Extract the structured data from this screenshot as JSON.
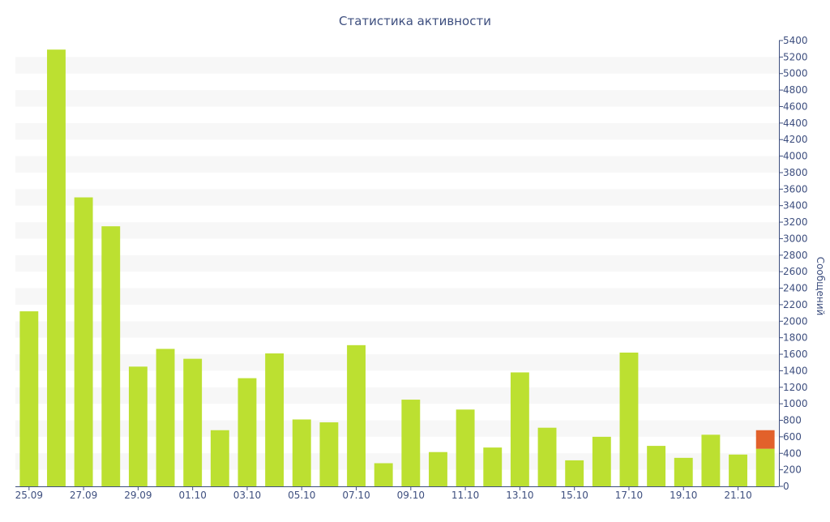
{
  "chart_data": {
    "type": "bar",
    "title": "Статистика активности",
    "xlabel": "",
    "ylabel": "Сообщений",
    "y_axis_side": "right",
    "ylim": [
      0,
      5400
    ],
    "ytick_step": 200,
    "grid": "alternating horizontal bands",
    "legend": "none",
    "categories": [
      "25.09",
      "26.09",
      "27.09",
      "28.09",
      "29.09",
      "30.09",
      "01.10",
      "02.10",
      "03.10",
      "04.10",
      "05.10",
      "06.10",
      "07.10",
      "08.10",
      "09.10",
      "10.10",
      "11.10",
      "12.10",
      "13.10",
      "14.10",
      "15.10",
      "16.10",
      "17.10",
      "18.10",
      "19.10",
      "20.10",
      "21.10",
      "22.10"
    ],
    "xtick_labels": [
      "25.09",
      "27.09",
      "29.09",
      "01.10",
      "03.10",
      "05.10",
      "07.10",
      "09.10",
      "11.10",
      "13.10",
      "15.10",
      "17.10",
      "19.10",
      "21.10"
    ],
    "series": [
      {
        "color": "#bce031",
        "values": [
          2120,
          5290,
          3500,
          3150,
          1450,
          1665,
          1545,
          680,
          1310,
          1610,
          810,
          775,
          1710,
          280,
          1050,
          415,
          930,
          470,
          1380,
          710,
          315,
          600,
          1620,
          490,
          345,
          625,
          385,
          455
        ]
      },
      {
        "color": "#e2612b",
        "values": [
          0,
          0,
          0,
          0,
          0,
          0,
          0,
          0,
          0,
          0,
          0,
          0,
          0,
          0,
          0,
          0,
          0,
          0,
          0,
          0,
          0,
          0,
          0,
          0,
          0,
          0,
          0,
          225
        ]
      }
    ],
    "colors": {
      "text": "#3e4f7f",
      "axis": "#3e4f7f",
      "band": "#f7f7f7"
    }
  }
}
